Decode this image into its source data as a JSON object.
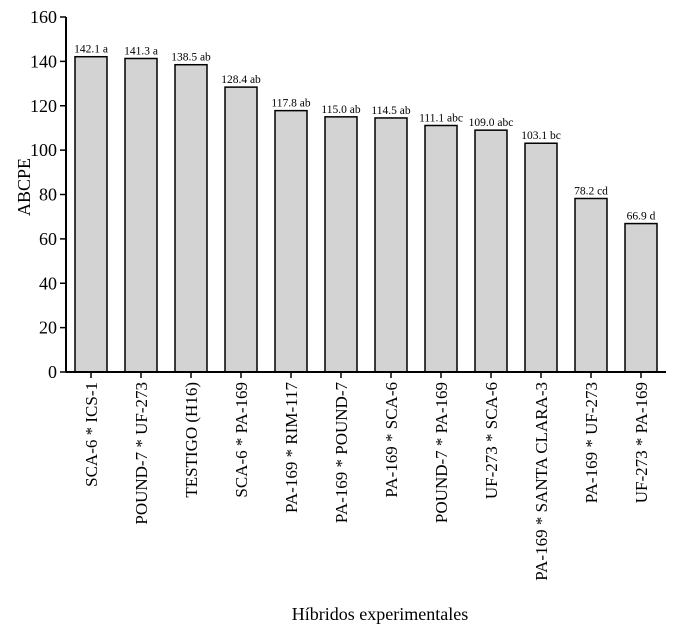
{
  "chart_data": {
    "type": "bar",
    "title": "",
    "xlabel": "Híbridos experimentales",
    "ylabel": "ABCPE",
    "ylim": [
      0,
      160
    ],
    "yticks": [
      0,
      20,
      40,
      60,
      80,
      100,
      120,
      140,
      160
    ],
    "grid": false,
    "categories": [
      "SCA-6 * ICS-1",
      "POUND-7 * UF-273",
      "TESTIGO (H16)",
      "SCA-6 * PA-169",
      "PA-169 * RIM-117",
      "PA-169 * POUND-7",
      "PA-169 * SCA-6",
      "POUND-7 * PA-169",
      "UF-273 * SCA-6",
      "PA-169 * SANTA CLARA-3",
      "PA-169 * UF-273",
      "UF-273 * PA-169"
    ],
    "values": [
      142.1,
      141.3,
      138.5,
      128.4,
      117.8,
      115.0,
      114.5,
      111.1,
      109.0,
      103.1,
      78.2,
      66.9
    ],
    "data_labels": [
      "142.1 a",
      "141.3 a",
      "138.5 ab",
      "128.4  ab",
      "117.8 ab",
      "115.0  ab",
      "114.5 ab",
      "111.1 abc",
      "109.0 abc",
      "103.1 bc",
      "78.2 cd",
      "66.9  d"
    ],
    "bar_color": "#d3d3d3"
  }
}
